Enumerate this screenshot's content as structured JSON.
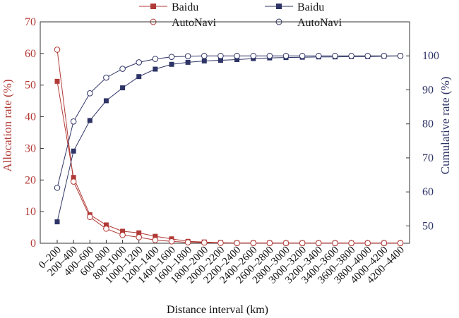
{
  "chart_data": {
    "type": "line",
    "categories": [
      "0–200",
      "200–400",
      "400–600",
      "600–800",
      "800–1000",
      "1000–1200",
      "1200–1400",
      "1400–1600",
      "1600–1800",
      "1800–2000",
      "2000–2200",
      "2200–2400",
      "2400–2600",
      "2600–2800",
      "2800–3000",
      "3000–3200",
      "3200–3400",
      "3400–3600",
      "3600–3800",
      "3800–4000",
      "4000–4200",
      "4200–4400"
    ],
    "xlabel": "Distance interval (km)",
    "ylabel_left": "Allocation rate (%)",
    "ylabel_right": "Cumulative rate (%)",
    "ylim_left": [
      0,
      70
    ],
    "yticks_left": [
      0,
      10,
      20,
      30,
      40,
      50,
      60,
      70
    ],
    "ylim_right": [
      44.9,
      110
    ],
    "yticks_right": [
      50,
      60,
      70,
      80,
      90,
      100
    ],
    "legend_position": "top-center",
    "series": [
      {
        "name": "Baidu",
        "axis": "left",
        "marker": "square-filled",
        "color": "#b13a36",
        "values": [
          51.2,
          20.8,
          9.0,
          5.8,
          3.8,
          3.3,
          2.2,
          1.4,
          0.6,
          0.4,
          0.2,
          0.1,
          0.1,
          0.1,
          0.05,
          0.05,
          0.05,
          0.05,
          0.05,
          0.05,
          0.05,
          0.05
        ]
      },
      {
        "name": "AutoNavi",
        "axis": "left",
        "marker": "circle-open",
        "color": "#b13a36",
        "values": [
          61.2,
          19.5,
          8.3,
          4.6,
          2.6,
          1.9,
          1.0,
          0.6,
          0.3,
          0.2,
          0.1,
          0.05,
          0.05,
          0.05,
          0.05,
          0.05,
          0.05,
          0.05,
          0.05,
          0.05,
          0.05,
          0.05
        ]
      },
      {
        "name": "Baidu",
        "axis": "right",
        "marker": "square-filled",
        "color": "#2e3466",
        "values": [
          51.2,
          72.0,
          81.0,
          86.8,
          90.6,
          93.9,
          96.1,
          97.5,
          98.1,
          98.5,
          98.7,
          98.9,
          99.2,
          99.4,
          99.5,
          99.6,
          99.7,
          99.7,
          99.8,
          99.8,
          99.9,
          100
        ]
      },
      {
        "name": "AutoNavi",
        "axis": "right",
        "marker": "circle-open",
        "color": "#2e3466",
        "values": [
          61.2,
          80.7,
          89.0,
          93.6,
          96.2,
          98.1,
          99.1,
          99.7,
          99.9,
          100,
          100,
          100,
          100,
          100,
          100,
          100,
          100,
          100,
          100,
          100,
          100,
          100
        ]
      }
    ]
  }
}
